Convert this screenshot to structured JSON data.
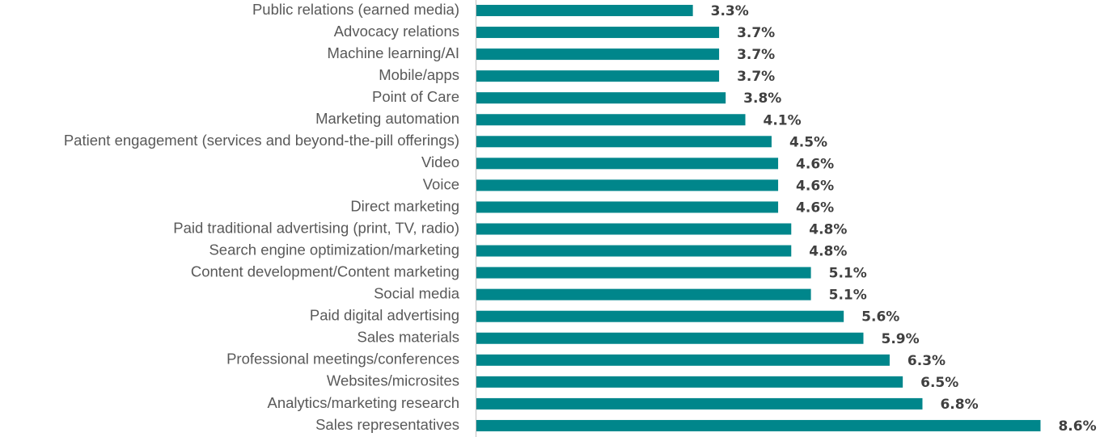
{
  "chart_data": {
    "type": "bar",
    "orientation": "horizontal",
    "color": "#00868b",
    "categories": [
      "Public relations (earned media)",
      "Advocacy relations",
      "Machine learning/AI",
      "Mobile/apps",
      "Point of Care",
      "Marketing automation",
      "Patient engagement (services and beyond-the-pill offerings)",
      "Video",
      "Voice",
      "Direct marketing",
      "Paid traditional advertising (print, TV, radio)",
      "Search engine optimization/marketing",
      "Content development/Content marketing",
      "Social media",
      "Paid digital advertising",
      "Sales materials",
      "Professional meetings/conferences",
      "Websites/microsites",
      "Analytics/marketing research",
      "Sales representatives"
    ],
    "values": [
      3.3,
      3.7,
      3.7,
      3.7,
      3.8,
      4.1,
      4.5,
      4.6,
      4.6,
      4.6,
      4.8,
      4.8,
      5.1,
      5.1,
      5.6,
      5.9,
      6.3,
      6.5,
      6.8,
      8.6
    ],
    "value_labels": [
      "3.3%",
      "3.7%",
      "3.7%",
      "3.7%",
      "3.8%",
      "4.1%",
      "4.5%",
      "4.6%",
      "4.6%",
      "4.6%",
      "4.8%",
      "4.8%",
      "5.1%",
      "5.1%",
      "5.6%",
      "5.9%",
      "6.3%",
      "6.5%",
      "6.8%",
      "8.6%"
    ]
  }
}
